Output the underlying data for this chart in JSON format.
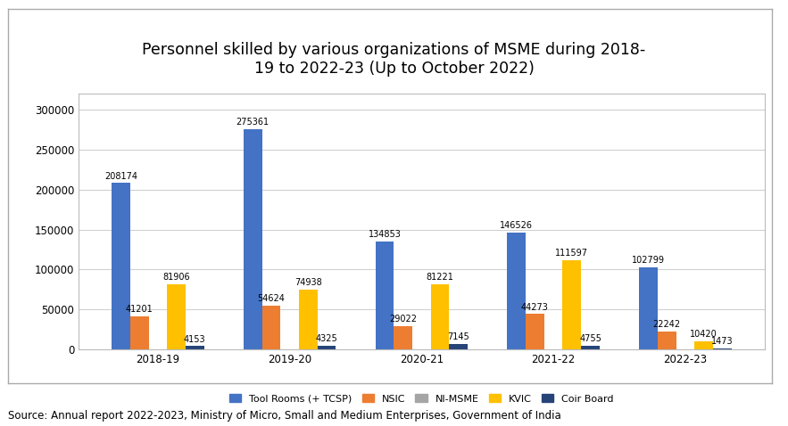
{
  "title": "Personnel skilled by various organizations of MSME during 2018-\n19 to 2022-23 (Up to October 2022)",
  "source_text": "Source: Annual report 2022-2023, Ministry of Micro, Small and Medium Enterprises, Government of India",
  "categories": [
    "2018-19",
    "2019-20",
    "2020-21",
    "2021-22",
    "2022-23"
  ],
  "series": {
    "Tool Rooms (+ TCSP)": [
      208174,
      275361,
      134853,
      146526,
      102799
    ],
    "NSIC": [
      41201,
      54624,
      29022,
      44273,
      22242
    ],
    "NI-MSME": [
      0,
      0,
      0,
      0,
      0
    ],
    "KVIC": [
      81906,
      74938,
      81221,
      111597,
      10420
    ],
    "Coir Board": [
      4153,
      4325,
      7145,
      4755,
      1473
    ]
  },
  "colors": {
    "Tool Rooms (+ TCSP)": "#4472C4",
    "NSIC": "#ED7D31",
    "NI-MSME": "#A5A5A5",
    "KVIC": "#FFC000",
    "Coir Board": "#264478"
  },
  "ylim": [
    0,
    320000
  ],
  "yticks": [
    0,
    50000,
    100000,
    150000,
    200000,
    250000,
    300000
  ],
  "bar_width": 0.14,
  "background_color": "#FFFFFF",
  "title_fontsize": 12.5,
  "tick_fontsize": 8.5,
  "label_fontsize": 7,
  "legend_fontsize": 8,
  "source_fontsize": 8.5
}
